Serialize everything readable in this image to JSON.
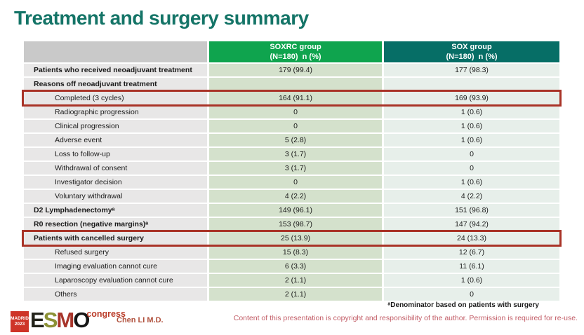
{
  "slide": {
    "title": "Treatment and surgery summary",
    "author": "Chen LI M.D.",
    "footnote": "ᵃDenominator based on patients with surgery",
    "copyright": "Content of this presentation is copyright and responsibility of the author.  Permission is required for re-use.",
    "logo": {
      "city": "MADRID",
      "year": "2023",
      "letters": [
        "E",
        "S",
        "M",
        "O"
      ],
      "congress": "congress"
    }
  },
  "table": {
    "columns": [
      {
        "line1": "SOXRC group",
        "line2": "(N=180)  n (%)"
      },
      {
        "line1": "SOX group",
        "line2": "(N=180)  n (%)"
      }
    ],
    "rows": [
      {
        "label": "Patients who received neoadjuvant treatment",
        "soxrc": "179 (99.4)",
        "sox": "177 (98.3)",
        "bold": true
      },
      {
        "label": "Reasons off neoadjuvant treatment",
        "soxrc": "",
        "sox": "",
        "bold": true
      },
      {
        "label": "Completed (3 cycles)",
        "soxrc": "164 (91.1)",
        "sox": "169 (93.9)",
        "indent": true,
        "highlight": true
      },
      {
        "label": "Radiographic progression",
        "soxrc": "0",
        "sox": "1 (0.6)",
        "indent": true
      },
      {
        "label": "Clinical progression",
        "soxrc": "0",
        "sox": "1 (0.6)",
        "indent": true
      },
      {
        "label": "Adverse event",
        "soxrc": "5 (2.8)",
        "sox": "1 (0.6)",
        "indent": true
      },
      {
        "label": "Loss to follow-up",
        "soxrc": "3 (1.7)",
        "sox": "0",
        "indent": true
      },
      {
        "label": "Withdrawal of consent",
        "soxrc": "3 (1.7)",
        "sox": "0",
        "indent": true
      },
      {
        "label": "Investigator decision",
        "soxrc": "0",
        "sox": "1 (0.6)",
        "indent": true
      },
      {
        "label": "Voluntary withdrawal",
        "soxrc": "4 (2.2)",
        "sox": "4 (2.2)",
        "indent": true
      },
      {
        "label": "D2 Lymphadenectomyᵃ",
        "soxrc": "149 (96.1)",
        "sox": "151 (96.8)",
        "bold": true
      },
      {
        "label": "R0 resection (negative margins)ᵃ",
        "soxrc": "153 (98.7)",
        "sox": "147 (94.2)",
        "bold": true
      },
      {
        "label": "Patients with cancelled surgery",
        "soxrc": "25 (13.9)",
        "sox": "24 (13.3)",
        "bold": true,
        "highlight": true
      },
      {
        "label": "Refused surgery",
        "soxrc": "15 (8.3)",
        "sox": "12 (6.7)",
        "indent": true
      },
      {
        "label": "Imaging evaluation cannot cure",
        "soxrc": "6 (3.3)",
        "sox": "11 (6.1)",
        "indent": true
      },
      {
        "label": "Laparoscopy evaluation cannot cure",
        "soxrc": "2 (1.1)",
        "sox": "1 (0.6)",
        "indent": true
      },
      {
        "label": "Others",
        "soxrc": "2 (1.1)",
        "sox": "0",
        "indent": true
      }
    ]
  },
  "colors": {
    "title": "#147467",
    "soxrc_header": "#0FA44E",
    "sox_header": "#066E66",
    "label_header": "#C9C9C9",
    "label_cell": "#E8E7E7",
    "soxrc_cell": "#D4E1CC",
    "sox_cell": "#E7EFEA",
    "highlight_border": "#A93327",
    "author": "#B0503C",
    "copyright": "#C25C66",
    "logo_red": "#CE3428",
    "logo_olive": "#8C9135"
  }
}
